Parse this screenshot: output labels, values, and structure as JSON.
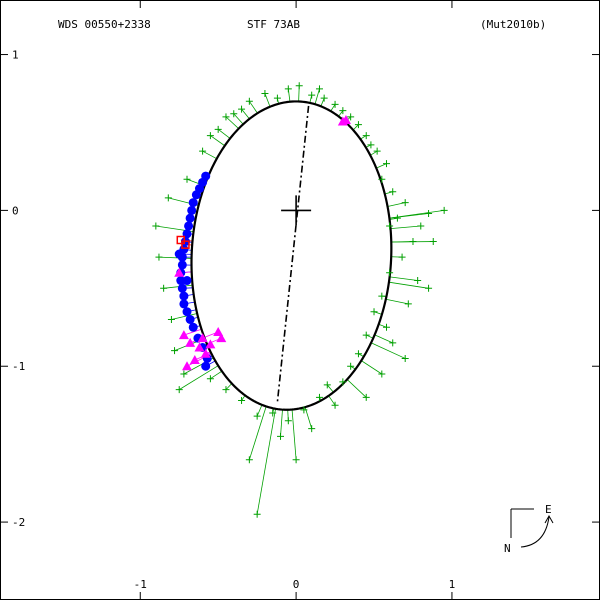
{
  "header": {
    "left": "WDS 00550+2338",
    "center": "STF  73AB",
    "right": "(Mut2010b)"
  },
  "compass": {
    "east": "E",
    "north": "N"
  },
  "colors": {
    "orbit": "#000000",
    "micrometer": "#00a000",
    "interferometry": "#0000ff",
    "speckle": "#ff00ff",
    "other": "#ff0000",
    "frame": "#000000"
  },
  "chart_data": {
    "type": "scatter",
    "title": "",
    "xlabel": "",
    "ylabel": "",
    "xlim": [
      -1.9,
      1.95
    ],
    "ylim": [
      -2.5,
      1.35
    ],
    "x_ticks": [
      {
        "value": -1,
        "label": "-1"
      },
      {
        "value": 0,
        "label": "0"
      },
      {
        "value": 1,
        "label": "1"
      }
    ],
    "y_ticks": [
      {
        "value": 1,
        "label": "1"
      },
      {
        "value": 0,
        "label": "0"
      },
      {
        "value": -1,
        "label": "-1"
      },
      {
        "value": -2,
        "label": "-2"
      }
    ],
    "orbit": {
      "center": [
        -0.03,
        -0.29
      ],
      "semi_axes": [
        0.64,
        0.99
      ],
      "tilt_deg": -3
    },
    "primary": [
      0,
      0
    ],
    "line_of_nodes": [
      [
        0.08,
        0.67
      ],
      [
        -0.12,
        -1.23
      ]
    ],
    "series": [
      {
        "marker": "plus",
        "color": "#00a000",
        "points": [
          [
            -0.45,
            0.6
          ],
          [
            -0.4,
            0.62
          ],
          [
            -0.3,
            0.7
          ],
          [
            -0.2,
            0.75
          ],
          [
            -0.12,
            0.72
          ],
          [
            -0.05,
            0.78
          ],
          [
            0.02,
            0.8
          ],
          [
            0.1,
            0.74
          ],
          [
            0.18,
            0.72
          ],
          [
            0.25,
            0.68
          ],
          [
            0.35,
            0.6
          ],
          [
            0.4,
            0.55
          ],
          [
            0.45,
            0.48
          ],
          [
            0.52,
            0.38
          ],
          [
            0.58,
            0.3
          ],
          [
            -0.55,
            0.48
          ],
          [
            -0.6,
            0.38
          ],
          [
            -0.5,
            0.52
          ],
          [
            -0.35,
            0.65
          ],
          [
            0.15,
            0.78
          ],
          [
            0.3,
            0.64
          ],
          [
            0.48,
            0.42
          ],
          [
            0.55,
            0.2
          ],
          [
            0.62,
            0.12
          ],
          [
            0.7,
            0.05
          ],
          [
            0.85,
            -0.02
          ],
          [
            0.95,
            0.0
          ],
          [
            0.8,
            -0.1
          ],
          [
            0.75,
            -0.2
          ],
          [
            0.65,
            -0.05
          ],
          [
            0.68,
            -0.3
          ],
          [
            0.6,
            -0.4
          ],
          [
            0.78,
            -0.45
          ],
          [
            0.85,
            -0.5
          ],
          [
            0.55,
            -0.55
          ],
          [
            0.72,
            -0.6
          ],
          [
            0.5,
            -0.65
          ],
          [
            0.58,
            -0.75
          ],
          [
            0.45,
            -0.8
          ],
          [
            0.62,
            -0.85
          ],
          [
            0.7,
            -0.95
          ],
          [
            0.4,
            -0.92
          ],
          [
            0.35,
            -1.0
          ],
          [
            0.55,
            -1.05
          ],
          [
            0.3,
            -1.1
          ],
          [
            0.2,
            -1.12
          ],
          [
            0.15,
            -1.2
          ],
          [
            0.25,
            -1.25
          ],
          [
            0.05,
            -1.28
          ],
          [
            -0.05,
            -1.35
          ],
          [
            -0.15,
            -1.3
          ],
          [
            -0.25,
            -1.32
          ],
          [
            -0.35,
            -1.22
          ],
          [
            -0.45,
            -1.15
          ],
          [
            -0.55,
            -1.08
          ],
          [
            -0.72,
            -1.05
          ],
          [
            -0.75,
            -1.15
          ],
          [
            -0.3,
            -1.6
          ],
          [
            -0.1,
            -1.45
          ],
          [
            0.0,
            -1.6
          ],
          [
            -0.25,
            -1.95
          ],
          [
            -0.8,
            -0.7
          ],
          [
            -0.85,
            -0.5
          ],
          [
            -0.88,
            -0.3
          ],
          [
            -0.9,
            -0.1
          ],
          [
            -0.82,
            0.08
          ],
          [
            -0.7,
            0.2
          ],
          [
            -0.78,
            -0.9
          ],
          [
            0.45,
            -1.2
          ],
          [
            0.1,
            -1.4
          ],
          [
            0.6,
            -0.1
          ],
          [
            0.88,
            -0.2
          ]
        ]
      },
      {
        "marker": "circle",
        "color": "#0000ff",
        "points": [
          [
            -0.58,
            0.22
          ],
          [
            -0.6,
            0.18
          ],
          [
            -0.62,
            0.14
          ],
          [
            -0.64,
            0.1
          ],
          [
            -0.66,
            0.05
          ],
          [
            -0.67,
            0.0
          ],
          [
            -0.68,
            -0.05
          ],
          [
            -0.69,
            -0.1
          ],
          [
            -0.7,
            -0.15
          ],
          [
            -0.71,
            -0.2
          ],
          [
            -0.72,
            -0.25
          ],
          [
            -0.73,
            -0.3
          ],
          [
            -0.73,
            -0.35
          ],
          [
            -0.74,
            -0.4
          ],
          [
            -0.74,
            -0.45
          ],
          [
            -0.73,
            -0.5
          ],
          [
            -0.72,
            -0.55
          ],
          [
            -0.72,
            -0.6
          ],
          [
            -0.7,
            -0.65
          ],
          [
            -0.68,
            -0.7
          ],
          [
            -0.66,
            -0.75
          ],
          [
            -0.63,
            -0.82
          ],
          [
            -0.6,
            -0.88
          ],
          [
            -0.57,
            -0.95
          ],
          [
            -0.58,
            -1.0
          ],
          [
            -0.75,
            -0.28
          ],
          [
            -0.7,
            -0.45
          ]
        ]
      },
      {
        "marker": "triangle",
        "color": "#ff00ff",
        "points": [
          [
            0.3,
            0.57
          ],
          [
            0.32,
            0.58
          ],
          [
            -0.75,
            -0.4
          ],
          [
            -0.72,
            -0.8
          ],
          [
            -0.68,
            -0.85
          ],
          [
            -0.62,
            -0.88
          ],
          [
            -0.58,
            -0.92
          ],
          [
            -0.55,
            -0.86
          ],
          [
            -0.48,
            -0.82
          ],
          [
            -0.5,
            -0.78
          ],
          [
            -0.65,
            -0.96
          ],
          [
            -0.7,
            -1.0
          ],
          [
            -0.6,
            -0.82
          ]
        ]
      },
      {
        "marker": "square",
        "color": "#ff0000",
        "points": [
          [
            -0.74,
            -0.19
          ],
          [
            -0.71,
            -0.22
          ]
        ]
      }
    ]
  }
}
